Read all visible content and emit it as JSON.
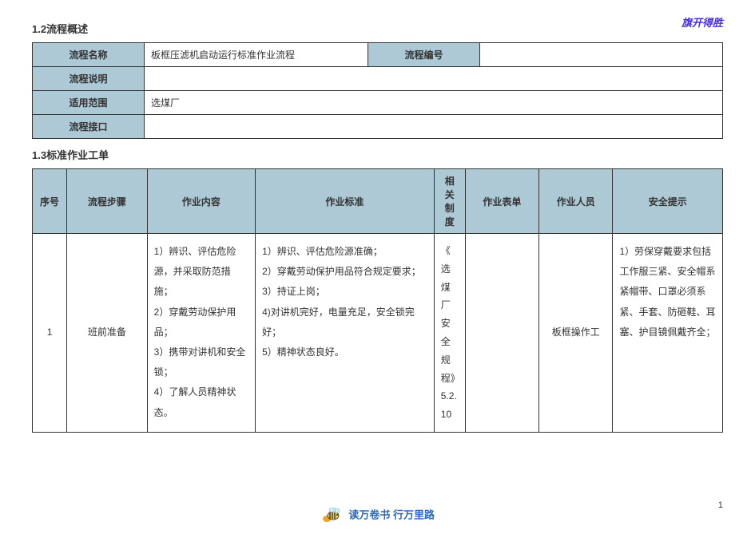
{
  "watermark": "旗开得胜",
  "section_1_2_title": "1.2流程概述",
  "section_1_3_title": "1.3标准作业工单",
  "overview": {
    "rows": [
      {
        "label": "流程名称",
        "value1": "板框压滤机启动运行标准作业流程",
        "label2": "流程编号",
        "value2": ""
      },
      {
        "label": "流程说明",
        "value": ""
      },
      {
        "label": "适用范围",
        "value": "选煤厂"
      },
      {
        "label": "流程接口",
        "value": ""
      }
    ]
  },
  "work_table": {
    "headers": {
      "seq": "序号",
      "step": "流程步骤",
      "content": "作业内容",
      "standard": "作业标准",
      "regulation": "相关制度",
      "form": "作业表单",
      "personnel": "作业人员",
      "safety": "安全提示"
    },
    "col_widths": {
      "seq": "42px",
      "step": "98px",
      "content": "132px",
      "standard": "218px",
      "regulation": "38px",
      "form": "90px",
      "personnel": "90px",
      "safety": "134px"
    },
    "row1": {
      "seq": "1",
      "step": "班前准备",
      "content": "1）辨识、评估危险源，并采取防范措施；\n2）穿戴劳动保护用品；\n3）携带对讲机和安全锁；\n4）了解人员精神状态。",
      "standard": "1）辨识、评估危险源准确；\n2）穿戴劳动保护用品符合规定要求；\n3）持证上岗；\n4)对讲机完好，电量充足，安全锁完好；\n5）精神状态良好。",
      "regulation": "《选煤厂安全规程》5.2.10",
      "form": "",
      "personnel": "板框操作工",
      "safety": "1）劳保穿戴要求包括工作服三紧、安全帽系紧帽带、口罩必须系紧、手套、防砸鞋、耳塞、护目镜佩戴齐全；"
    }
  },
  "footer_text": "读万卷书 行万里路",
  "page_number": "1",
  "colors": {
    "header_bg": "#adc9d6",
    "border": "#333333",
    "watermark": "#4a2fd6",
    "footer": "#2b6cb8"
  }
}
